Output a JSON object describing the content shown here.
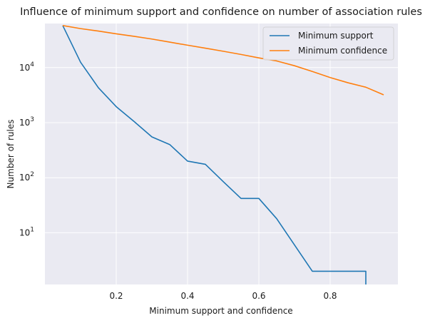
{
  "chart_data": {
    "type": "line",
    "title": "Influence of minimum support and confidence on number of association rules",
    "xlabel": "Minimum support and confidence",
    "ylabel": "Number of rules",
    "xlim": [
      0.0,
      0.99
    ],
    "ylim_log10": [
      0.06,
      4.8
    ],
    "yscale": "log",
    "grid": true,
    "legend_position": "top-right",
    "x_ticks": [
      {
        "value": 0.2,
        "label": "0.2"
      },
      {
        "value": 0.4,
        "label": "0.4"
      },
      {
        "value": 0.6,
        "label": "0.6"
      },
      {
        "value": 0.8,
        "label": "0.8"
      }
    ],
    "y_ticks": [
      {
        "value": 10,
        "base": "10",
        "exp": "1"
      },
      {
        "value": 100,
        "base": "10",
        "exp": "2"
      },
      {
        "value": 1000,
        "base": "10",
        "exp": "3"
      },
      {
        "value": 10000,
        "base": "10",
        "exp": "4"
      }
    ],
    "series": [
      {
        "name": "Minimum support",
        "color": "#1f77b4",
        "x": [
          0.05,
          0.1,
          0.15,
          0.2,
          0.25,
          0.3,
          0.35,
          0.4,
          0.45,
          0.5,
          0.55,
          0.6,
          0.65,
          0.7,
          0.75,
          0.8,
          0.85,
          0.9,
          0.9
        ],
        "y": [
          58000,
          12500,
          4300,
          1950,
          1050,
          550,
          400,
          200,
          175,
          85,
          42,
          42,
          18,
          6,
          2,
          2,
          2,
          2,
          1
        ]
      },
      {
        "name": "Minimum confidence",
        "color": "#ff7f0e",
        "x": [
          0.05,
          0.1,
          0.15,
          0.2,
          0.25,
          0.3,
          0.35,
          0.4,
          0.45,
          0.5,
          0.55,
          0.6,
          0.65,
          0.7,
          0.75,
          0.8,
          0.85,
          0.9,
          0.95
        ],
        "y": [
          58000,
          51000,
          46000,
          41000,
          37000,
          33000,
          29000,
          25500,
          22500,
          19800,
          17300,
          15000,
          13200,
          10800,
          8500,
          6600,
          5300,
          4400,
          3200
        ]
      }
    ]
  },
  "colors": {
    "plot_background": "#eaeaf2",
    "grid": "#ffffff"
  }
}
